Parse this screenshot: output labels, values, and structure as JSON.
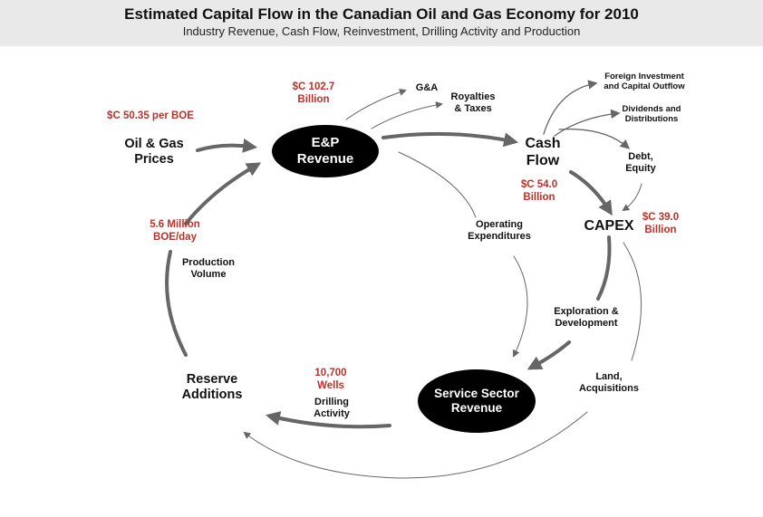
{
  "header": {
    "title": "Estimated Capital Flow in the Canadian Oil and Gas Economy for 2010",
    "subtitle": "Industry Revenue, Cash Flow, Reinvestment, Drilling Activity and Production"
  },
  "nodes": {
    "ep_revenue": [
      "E&P",
      "Revenue"
    ],
    "service_sector": [
      "Service Sector",
      "Revenue"
    ],
    "cash_flow": [
      "Cash",
      "Flow"
    ],
    "capex": "CAPEX",
    "oil_gas_prices": [
      "Oil & Gas",
      "Prices"
    ],
    "reserve_additions": [
      "Reserve",
      "Additions"
    ]
  },
  "flows": {
    "ga": "G&A",
    "royalties": [
      "Royalties",
      "& Taxes"
    ],
    "foreign_investment": [
      "Foreign Investment",
      "and Capital Outflow"
    ],
    "dividends": [
      "Dividends and",
      "Distributions"
    ],
    "debt_equity": [
      "Debt,",
      "Equity"
    ],
    "operating_expenditures": [
      "Operating",
      "Expenditures"
    ],
    "exploration_development": [
      "Exploration &",
      "Development"
    ],
    "land_acquisitions": [
      "Land,",
      "Acquisitions"
    ],
    "drilling_activity": [
      "Drilling",
      "Activity"
    ],
    "production_volume": [
      "Production",
      "Volume"
    ]
  },
  "values": {
    "price": "$C 50.35 per BOE",
    "revenue": [
      "$C 102.7",
      "Billion"
    ],
    "cash_flow": [
      "$C 54.0",
      "Billion"
    ],
    "capex": [
      "$C 39.0",
      "Billion"
    ],
    "wells": [
      "10,700",
      "Wells"
    ],
    "production": [
      "5.6 Million",
      "BOE/day"
    ]
  },
  "colors": {
    "value_red": "#b5332b",
    "arrow_gray": "#666666",
    "node_black": "#000000",
    "header_bg": "#e9e9e9"
  }
}
